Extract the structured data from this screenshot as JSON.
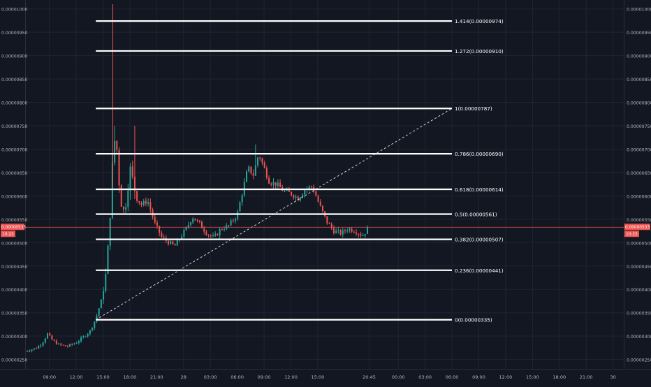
{
  "chart_data": {
    "type": "candlestick",
    "price_axis": {
      "min": 2.3e-06,
      "max": 1.01e-05,
      "ticks": [
        "0.00000250",
        "0.00000300",
        "0.00000350",
        "0.00000400",
        "0.00000450",
        "0.00000500",
        "0.00000550",
        "0.00000600",
        "0.00000650",
        "0.00000700",
        "0.00000750",
        "0.00000800",
        "0.00000850",
        "0.00000900",
        "0.00000950",
        "0.00001000"
      ]
    },
    "time_axis": {
      "labels": [
        {
          "text": "09:00",
          "hours": 9
        },
        {
          "text": "12:00",
          "hours": 12
        },
        {
          "text": "15:00",
          "hours": 15
        },
        {
          "text": "18:00",
          "hours": 18
        },
        {
          "text": "21:00",
          "hours": 21
        },
        {
          "text": "28",
          "hours": 24
        },
        {
          "text": "03:00",
          "hours": 27
        },
        {
          "text": "06:00",
          "hours": 30
        },
        {
          "text": "09:00",
          "hours": 33
        },
        {
          "text": "12:00",
          "hours": 36
        },
        {
          "text": "15:00",
          "hours": 39
        },
        {
          "text": "20:45",
          "hours": 44.75
        },
        {
          "text": "00:00",
          "hours": 48
        },
        {
          "text": "03:00",
          "hours": 51
        },
        {
          "text": "06:00",
          "hours": 54
        },
        {
          "text": "09:00",
          "hours": 57
        },
        {
          "text": "12:00",
          "hours": 60
        },
        {
          "text": "15:00",
          "hours": 63
        },
        {
          "text": "18:00",
          "hours": 66
        },
        {
          "text": "21:00",
          "hours": 69
        },
        {
          "text": "30",
          "hours": 72
        }
      ],
      "range_hours": [
        6.3,
        73.2
      ]
    },
    "current_price": {
      "value": 5.33e-06,
      "label": "0.00000533",
      "countdown": "10:23"
    },
    "fibonacci": {
      "start_hours": 14.2,
      "end_hours": 54,
      "levels": [
        {
          "label": "1.414(0.00000974)",
          "price": 9.74e-06
        },
        {
          "label": "1.272(0.00000910)",
          "price": 9.1e-06
        },
        {
          "label": "1(0.00000787)",
          "price": 7.87e-06
        },
        {
          "label": "0.786(0.00000690)",
          "price": 6.9e-06
        },
        {
          "label": "0.618(0.00000614)",
          "price": 6.14e-06
        },
        {
          "label": "0.5(0.00000561)",
          "price": 5.61e-06
        },
        {
          "label": "0.382(0.00000507)",
          "price": 5.07e-06
        },
        {
          "label": "0.236(0.00000441)",
          "price": 4.41e-06
        },
        {
          "label": "0(0.00000335)",
          "price": 3.35e-06
        }
      ]
    },
    "trend_line": {
      "from": {
        "hours": 14.2,
        "price": 3.35e-06
      },
      "to": {
        "hours": 54,
        "price": 7.87e-06
      }
    },
    "spike_marker": {
      "hours": 16.1,
      "price_high": 1.01e-05
    },
    "price_path": [
      [
        6.3,
        2.68
      ],
      [
        7.5,
        2.74
      ],
      [
        8.2,
        2.85
      ],
      [
        8.8,
        3.05
      ],
      [
        9.3,
        2.92
      ],
      [
        10,
        2.82
      ],
      [
        11,
        2.78
      ],
      [
        12,
        2.86
      ],
      [
        12.8,
        2.98
      ],
      [
        13.6,
        3.12
      ],
      [
        14.2,
        3.38
      ],
      [
        14.8,
        3.75
      ],
      [
        15.3,
        4.3
      ],
      [
        15.7,
        5.2
      ],
      [
        16.0,
        6.5
      ],
      [
        16.4,
        7.4
      ],
      [
        16.8,
        6.3
      ],
      [
        17.2,
        5.6
      ],
      [
        17.6,
        5.9
      ],
      [
        18.0,
        6.6
      ],
      [
        18.6,
        6.1
      ],
      [
        19.2,
        5.8
      ],
      [
        20,
        5.9
      ],
      [
        20.8,
        5.4
      ],
      [
        21.6,
        5.1
      ],
      [
        22.4,
        5.0
      ],
      [
        23,
        4.92
      ],
      [
        23.6,
        5.1
      ],
      [
        24.3,
        5.3
      ],
      [
        25,
        5.55
      ],
      [
        25.8,
        5.4
      ],
      [
        26.6,
        5.2
      ],
      [
        27.4,
        5.1
      ],
      [
        28.2,
        5.3
      ],
      [
        29,
        5.35
      ],
      [
        30,
        5.6
      ],
      [
        30.6,
        6.1
      ],
      [
        31.2,
        6.6
      ],
      [
        31.8,
        6.45
      ],
      [
        32.4,
        6.9
      ],
      [
        33,
        6.6
      ],
      [
        33.6,
        6.3
      ],
      [
        34.4,
        6.25
      ],
      [
        35.2,
        6.1
      ],
      [
        36,
        6.05
      ],
      [
        36.8,
        5.95
      ],
      [
        37.6,
        6.15
      ],
      [
        38.4,
        6.2
      ],
      [
        39.2,
        5.8
      ],
      [
        40,
        5.45
      ],
      [
        40.8,
        5.25
      ],
      [
        41.6,
        5.2
      ],
      [
        42.4,
        5.3
      ],
      [
        43.2,
        5.25
      ],
      [
        44,
        5.15
      ],
      [
        44.75,
        5.33
      ]
    ]
  }
}
